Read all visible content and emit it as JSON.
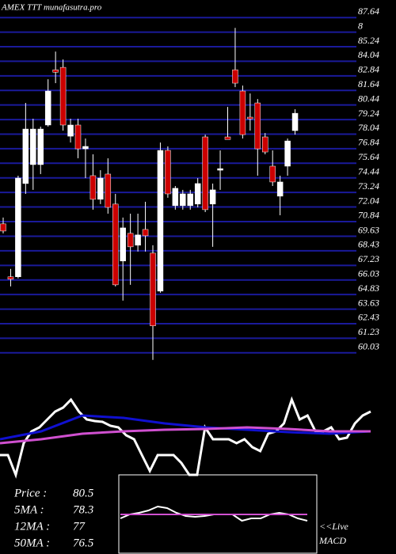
{
  "chart_data": {
    "type": "candlestick",
    "title": "AMEX  TTT munafasutra.pro",
    "ylim": [
      59.43,
      88.24
    ],
    "yticks": [
      87.64,
      {
        "value": 86.44,
        "label": "8"
      },
      85.24,
      84.04,
      82.84,
      81.64,
      80.44,
      79.24,
      78.04,
      76.84,
      75.64,
      74.44,
      73.24,
      72.04,
      70.84,
      69.63,
      68.43,
      67.23,
      66.03,
      64.83,
      63.63,
      62.43,
      61.23,
      60.03
    ],
    "grid": true,
    "grid_color": "#1a1a9a",
    "up_color": "#ffffff",
    "down_color": "#cc0000",
    "open": [
      70.65,
      66.29,
      66.29,
      73.97,
      75.53,
      75.53,
      78.79,
      83.34,
      83.54,
      77.87,
      78.79,
      76.83,
      74.62,
      72.67,
      74.75,
      72.28,
      67.59,
      69.87,
      68.89,
      70.19,
      68.24,
      65.11,
      76.7,
      72.15,
      72.15,
      72.15,
      72.28,
      77.81,
      72.28,
      75.07,
      77.81,
      83.34,
      81.59,
      79.44,
      80.61,
      77.81,
      75.4,
      72.93,
      75.4,
      78.33
    ],
    "high": [
      71.17,
      66.94,
      74.62,
      80.61,
      79.31,
      78.66,
      82.56,
      84.84,
      84.19,
      79.31,
      79.31,
      77.68,
      76.38,
      75.07,
      76.05,
      73.12,
      71.17,
      71.49,
      71.49,
      72.47,
      68.89,
      77.35,
      77.03,
      73.77,
      73.45,
      73.45,
      74.42,
      78.0,
      73.97,
      76.7,
      80.28,
      86.79,
      82.04,
      81.39,
      80.93,
      78.13,
      76.7,
      74.62,
      77.68,
      80.09
    ],
    "low": [
      69.87,
      65.5,
      66.16,
      73.12,
      73.45,
      74.75,
      78.66,
      82.24,
      78.33,
      77.35,
      76.05,
      74.42,
      71.82,
      72.28,
      71.49,
      65.5,
      64.33,
      65.63,
      68.37,
      68.37,
      59.45,
      64.98,
      72.8,
      71.82,
      71.82,
      71.82,
      72.01,
      71.62,
      68.76,
      73.45,
      77.68,
      81.91,
      77.68,
      78.33,
      74.62,
      76.38,
      73.77,
      71.36,
      74.62,
      78.0
    ],
    "close": [
      70.06,
      66.09,
      74.42,
      78.46,
      78.46,
      78.46,
      81.59,
      83.14,
      78.79,
      78.79,
      76.83,
      77.03,
      72.67,
      74.42,
      72.01,
      65.63,
      70.32,
      68.76,
      69.74,
      69.67,
      62.25,
      76.7,
      73.12,
      73.58,
      73.12,
      73.12,
      73.97,
      71.82,
      73.45,
      75.2,
      77.6,
      82.24,
      78.0,
      79.3,
      76.83,
      76.57,
      74.1,
      74.1,
      77.48,
      79.76
    ],
    "indicator": {
      "ylim": [
        0,
        105
      ],
      "series": [
        {
          "color": "#ffffff",
          "values": [
            25,
            25,
            0,
            40,
            55,
            60,
            70,
            80,
            85,
            95,
            80,
            70,
            68,
            67,
            62,
            60,
            50,
            45,
            25,
            5,
            25,
            25,
            25,
            15,
            0,
            0,
            60,
            45,
            45,
            45,
            40,
            45,
            35,
            30,
            52,
            55,
            65,
            95,
            70,
            75,
            55,
            55,
            60,
            45,
            47,
            65,
            75,
            80
          ]
        },
        {
          "color": "#1010d0",
          "values": [
            45,
            55,
            75,
            72,
            65,
            60,
            57,
            54,
            52,
            55
          ]
        },
        {
          "color": "#d050d0",
          "values": [
            40,
            45,
            52,
            55,
            57,
            58,
            60,
            58,
            55,
            55
          ]
        }
      ]
    },
    "macd": {
      "ylim": [
        0,
        100
      ],
      "series": [
        {
          "color": "#ffffff",
          "values": [
            45,
            50,
            52,
            55,
            60,
            58,
            52,
            48,
            47,
            48,
            50,
            50,
            50,
            42,
            45,
            45,
            50,
            52,
            50,
            45,
            42
          ]
        },
        {
          "color": "#d050d0",
          "values": [
            50,
            50
          ]
        }
      ]
    },
    "info": [
      {
        "label": "Price   :",
        "value": 80.5
      },
      {
        "label": "5MA :",
        "value": 78.3
      },
      {
        "label": "12MA :",
        "value": 77
      },
      {
        "label": "50MA :",
        "value": 76.5
      }
    ],
    "live_label": "<<Live",
    "macd_label": "MACD"
  }
}
